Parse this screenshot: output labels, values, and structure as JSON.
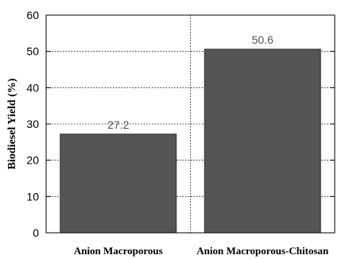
{
  "chart_data": {
    "type": "bar",
    "categories": [
      "Anion Macroporous",
      "Anion Macroporous-Chitosan"
    ],
    "values": [
      27.2,
      50.6
    ],
    "data_labels": [
      "27.2",
      "50.6"
    ],
    "title": "",
    "xlabel": "",
    "ylabel": "Biodiesel Yield (%)",
    "ylim": [
      0,
      60
    ],
    "yticks": [
      0,
      10,
      20,
      30,
      40,
      50,
      60
    ],
    "grid": true,
    "bar_color": "#555555"
  }
}
